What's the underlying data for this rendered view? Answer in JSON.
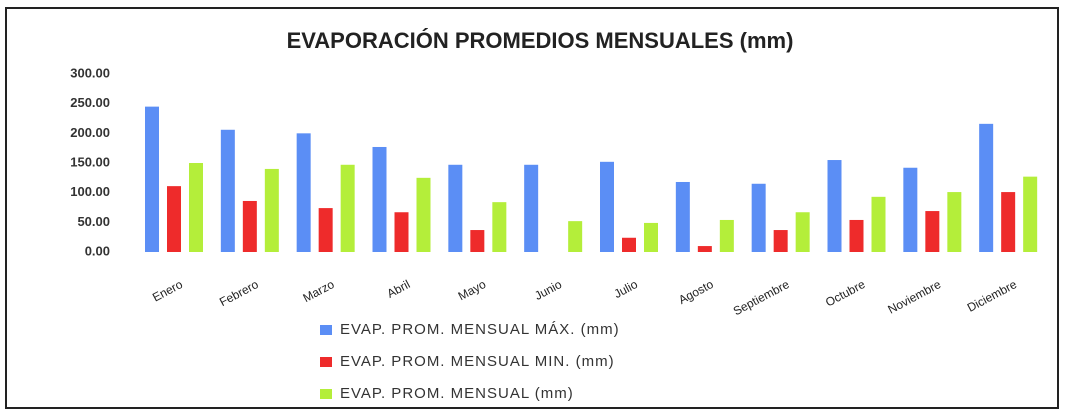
{
  "chart_data": {
    "type": "bar",
    "title": "EVAPORACIÓN PROMEDIOS MENSUALES (mm)",
    "categories": [
      "Enero",
      "Febrero",
      "Marzo",
      "Abril",
      "Mayo",
      "Junio",
      "Julio",
      "Agosto",
      "Septiembre",
      "Octubre",
      "Noviembre",
      "Diciembre"
    ],
    "series": [
      {
        "name": "EVAP. PROM. MENSUAL MÁX. (mm)",
        "color": "#5b8ef5",
        "values": [
          245,
          206,
          200,
          177,
          147,
          147,
          152,
          118,
          115,
          155,
          142,
          216
        ]
      },
      {
        "name": "EVAP. PROM. MENSUAL MIN. (mm)",
        "color": "#ee2b2b",
        "values": [
          111,
          86,
          74,
          67,
          37,
          0,
          24,
          10,
          37,
          54,
          69,
          101
        ]
      },
      {
        "name": "EVAP. PROM. MENSUAL (mm)",
        "color": "#b4ee3a",
        "values": [
          150,
          140,
          147,
          125,
          84,
          52,
          49,
          54,
          67,
          93,
          101,
          127
        ]
      }
    ],
    "ylim": [
      0,
      300
    ],
    "yticks": [
      {
        "value": 0,
        "label": "0.00"
      },
      {
        "value": 50,
        "label": "50.00"
      },
      {
        "value": 100,
        "label": "100.00"
      },
      {
        "value": 150,
        "label": "150.00"
      },
      {
        "value": 200,
        "label": "200.00"
      },
      {
        "value": 250,
        "label": "250.00"
      },
      {
        "value": 300,
        "label": "300.00"
      }
    ],
    "legend": "bottom"
  }
}
